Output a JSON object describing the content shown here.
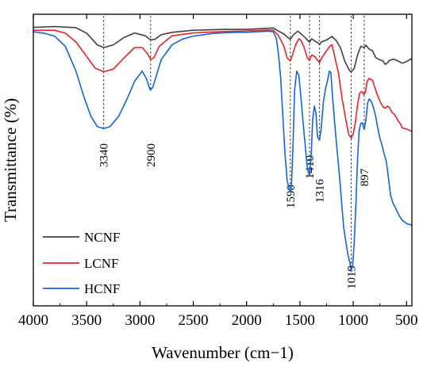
{
  "chart_data": {
    "type": "line",
    "xlabel": "Wavenumber (cm−1)",
    "ylabel": "Transmittance (%)",
    "x_reversed": true,
    "xlim": [
      4000,
      450
    ],
    "ylim": [
      0,
      100
    ],
    "y_ticks_shown": false,
    "grid": false,
    "legend_position": "bottom-left",
    "xticks": [
      4000,
      3500,
      3000,
      2500,
      2000,
      1500,
      1000,
      500
    ],
    "xtick_labels": [
      "4000",
      "3500",
      "3000",
      "2500",
      "2000",
      "1500",
      "1000",
      "500"
    ],
    "annotations": [
      {
        "x": 3340,
        "label": "3340"
      },
      {
        "x": 2900,
        "label": "2900"
      },
      {
        "x": 1590,
        "label": "1590"
      },
      {
        "x": 1410,
        "label": "1410"
      },
      {
        "x": 1316,
        "label": "1316"
      },
      {
        "x": 1019,
        "label": "1019"
      },
      {
        "x": 897,
        "label": "897"
      }
    ],
    "series": [
      {
        "name": "NCNF",
        "color": "#404040",
        "points": [
          [
            4000,
            95.5
          ],
          [
            3800,
            95.8
          ],
          [
            3600,
            95.4
          ],
          [
            3500,
            93.5
          ],
          [
            3400,
            89.5
          ],
          [
            3340,
            88.6
          ],
          [
            3250,
            89.5
          ],
          [
            3150,
            92.0
          ],
          [
            3050,
            93.6
          ],
          [
            2950,
            92.6
          ],
          [
            2900,
            91.2
          ],
          [
            2860,
            91.4
          ],
          [
            2800,
            93.0
          ],
          [
            2700,
            93.8
          ],
          [
            2500,
            94.5
          ],
          [
            2200,
            94.8
          ],
          [
            2000,
            94.8
          ],
          [
            1800,
            95.2
          ],
          [
            1750,
            95.3
          ],
          [
            1700,
            94.2
          ],
          [
            1650,
            93.2
          ],
          [
            1620,
            92.2
          ],
          [
            1590,
            91.4
          ],
          [
            1560,
            93.0
          ],
          [
            1520,
            94.2
          ],
          [
            1480,
            93.0
          ],
          [
            1440,
            91.6
          ],
          [
            1410,
            90.4
          ],
          [
            1390,
            91.6
          ],
          [
            1360,
            90.8
          ],
          [
            1330,
            90.2
          ],
          [
            1316,
            89.6
          ],
          [
            1300,
            90.5
          ],
          [
            1250,
            91.2
          ],
          [
            1200,
            92.4
          ],
          [
            1160,
            91.0
          ],
          [
            1120,
            88.5
          ],
          [
            1080,
            84.0
          ],
          [
            1040,
            81.0
          ],
          [
            1019,
            80.2
          ],
          [
            990,
            81.5
          ],
          [
            960,
            86.0
          ],
          [
            930,
            89.0
          ],
          [
            897,
            88.6
          ],
          [
            880,
            89.4
          ],
          [
            850,
            88.0
          ],
          [
            820,
            87.5
          ],
          [
            790,
            85.2
          ],
          [
            760,
            84.5
          ],
          [
            720,
            84.0
          ],
          [
            700,
            82.8
          ],
          [
            680,
            83.3
          ],
          [
            660,
            84.2
          ],
          [
            620,
            84.6
          ],
          [
            580,
            84.0
          ],
          [
            540,
            83.2
          ],
          [
            500,
            83.8
          ],
          [
            460,
            84.6
          ],
          [
            450,
            85.0
          ]
        ]
      },
      {
        "name": "LCNF",
        "color": "#e8232d",
        "points": [
          [
            4000,
            94.5
          ],
          [
            3800,
            94.5
          ],
          [
            3700,
            93.5
          ],
          [
            3600,
            90.5
          ],
          [
            3500,
            85.5
          ],
          [
            3420,
            81.5
          ],
          [
            3340,
            80.3
          ],
          [
            3250,
            81.2
          ],
          [
            3150,
            85.0
          ],
          [
            3050,
            88.6
          ],
          [
            2980,
            88.6
          ],
          [
            2930,
            86.5
          ],
          [
            2900,
            84.5
          ],
          [
            2870,
            85.0
          ],
          [
            2820,
            89.0
          ],
          [
            2700,
            92.6
          ],
          [
            2500,
            93.6
          ],
          [
            2200,
            94.1
          ],
          [
            2000,
            94.3
          ],
          [
            1800,
            94.6
          ],
          [
            1750,
            94.6
          ],
          [
            1700,
            92.6
          ],
          [
            1650,
            89.0
          ],
          [
            1620,
            85.0
          ],
          [
            1590,
            84.0
          ],
          [
            1570,
            86.0
          ],
          [
            1540,
            89.6
          ],
          [
            1510,
            91.6
          ],
          [
            1490,
            91.0
          ],
          [
            1460,
            88.5
          ],
          [
            1430,
            85.0
          ],
          [
            1410,
            84.2
          ],
          [
            1390,
            86.0
          ],
          [
            1360,
            85.5
          ],
          [
            1330,
            84.0
          ],
          [
            1316,
            83.4
          ],
          [
            1300,
            84.8
          ],
          [
            1260,
            87.0
          ],
          [
            1220,
            89.0
          ],
          [
            1200,
            89.6
          ],
          [
            1180,
            86.5
          ],
          [
            1140,
            80.0
          ],
          [
            1100,
            70.0
          ],
          [
            1060,
            62.0
          ],
          [
            1040,
            58.5
          ],
          [
            1019,
            57.6
          ],
          [
            1000,
            59.0
          ],
          [
            980,
            63.0
          ],
          [
            960,
            69.0
          ],
          [
            940,
            73.0
          ],
          [
            920,
            73.5
          ],
          [
            897,
            72.4
          ],
          [
            885,
            73.6
          ],
          [
            870,
            77.0
          ],
          [
            850,
            78.0
          ],
          [
            820,
            77.4
          ],
          [
            790,
            74.0
          ],
          [
            760,
            71.0
          ],
          [
            740,
            69.5
          ],
          [
            720,
            68.2
          ],
          [
            700,
            67.8
          ],
          [
            680,
            68.5
          ],
          [
            660,
            68.0
          ],
          [
            640,
            66.5
          ],
          [
            610,
            65.5
          ],
          [
            580,
            63.5
          ],
          [
            560,
            62.5
          ],
          [
            540,
            61.0
          ],
          [
            500,
            60.6
          ],
          [
            470,
            60.2
          ],
          [
            450,
            59.8
          ]
        ]
      },
      {
        "name": "HCNF",
        "color": "#1565d8",
        "points": [
          [
            4000,
            94.0
          ],
          [
            3900,
            93.5
          ],
          [
            3800,
            92.5
          ],
          [
            3700,
            89.0
          ],
          [
            3600,
            80.5
          ],
          [
            3520,
            71.0
          ],
          [
            3460,
            65.0
          ],
          [
            3400,
            61.5
          ],
          [
            3340,
            60.8
          ],
          [
            3280,
            61.5
          ],
          [
            3200,
            65.0
          ],
          [
            3120,
            71.0
          ],
          [
            3050,
            77.0
          ],
          [
            2980,
            80.5
          ],
          [
            2940,
            78.0
          ],
          [
            2910,
            74.5
          ],
          [
            2900,
            74.0
          ],
          [
            2880,
            75.0
          ],
          [
            2850,
            78.5
          ],
          [
            2800,
            84.5
          ],
          [
            2700,
            89.5
          ],
          [
            2600,
            91.5
          ],
          [
            2500,
            92.5
          ],
          [
            2300,
            93.5
          ],
          [
            2100,
            93.8
          ],
          [
            2000,
            93.8
          ],
          [
            1800,
            94.2
          ],
          [
            1750,
            94.0
          ],
          [
            1720,
            91.5
          ],
          [
            1700,
            86.0
          ],
          [
            1680,
            78.0
          ],
          [
            1660,
            65.0
          ],
          [
            1640,
            52.0
          ],
          [
            1620,
            43.0
          ],
          [
            1600,
            40.0
          ],
          [
            1590,
            39.2
          ],
          [
            1580,
            41.0
          ],
          [
            1565,
            55.0
          ],
          [
            1550,
            74.0
          ],
          [
            1530,
            80.5
          ],
          [
            1510,
            79.0
          ],
          [
            1490,
            71.0
          ],
          [
            1470,
            63.0
          ],
          [
            1450,
            55.0
          ],
          [
            1430,
            47.0
          ],
          [
            1410,
            44.6
          ],
          [
            1395,
            51.0
          ],
          [
            1380,
            64.0
          ],
          [
            1365,
            68.5
          ],
          [
            1350,
            66.0
          ],
          [
            1335,
            58.0
          ],
          [
            1316,
            56.8
          ],
          [
            1300,
            61.0
          ],
          [
            1280,
            70.0
          ],
          [
            1260,
            74.5
          ],
          [
            1240,
            77.5
          ],
          [
            1225,
            80.5
          ],
          [
            1210,
            80.0
          ],
          [
            1195,
            72.0
          ],
          [
            1175,
            63.0
          ],
          [
            1150,
            53.0
          ],
          [
            1130,
            45.0
          ],
          [
            1110,
            36.0
          ],
          [
            1090,
            27.0
          ],
          [
            1070,
            22.0
          ],
          [
            1050,
            17.5
          ],
          [
            1030,
            14.5
          ],
          [
            1019,
            11.8
          ],
          [
            1005,
            14.0
          ],
          [
            990,
            22.0
          ],
          [
            975,
            35.0
          ],
          [
            960,
            50.0
          ],
          [
            945,
            60.0
          ],
          [
            930,
            62.5
          ],
          [
            915,
            62.8
          ],
          [
            897,
            60.5
          ],
          [
            880,
            64.0
          ],
          [
            865,
            69.5
          ],
          [
            850,
            71.0
          ],
          [
            830,
            70.0
          ],
          [
            810,
            68.0
          ],
          [
            790,
            65.0
          ],
          [
            770,
            61.0
          ],
          [
            750,
            57.5
          ],
          [
            730,
            55.0
          ],
          [
            710,
            52.0
          ],
          [
            690,
            49.5
          ],
          [
            670,
            44.0
          ],
          [
            650,
            38.0
          ],
          [
            630,
            35.5
          ],
          [
            610,
            34.0
          ],
          [
            590,
            32.5
          ],
          [
            570,
            31.0
          ],
          [
            550,
            29.8
          ],
          [
            530,
            29.0
          ],
          [
            510,
            28.6
          ],
          [
            490,
            28.0
          ],
          [
            470,
            28.0
          ],
          [
            450,
            27.5
          ]
        ]
      }
    ]
  }
}
